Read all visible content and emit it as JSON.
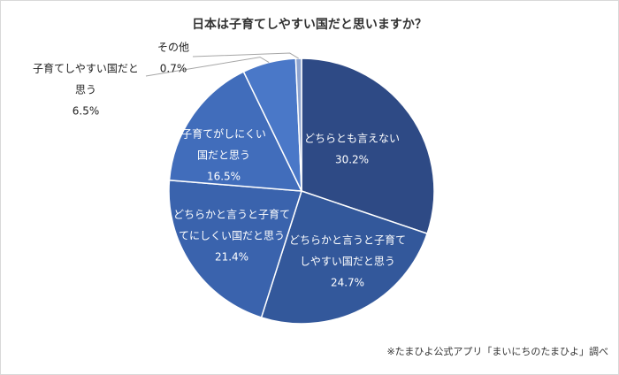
{
  "chart_data": {
    "type": "pie",
    "title": "日本は子育てしやすい国だと思いますか？",
    "categories": [
      [
        "どちらとも言えない"
      ],
      [
        "どちらかと言うと子育て",
        "しやすい国だと思う"
      ],
      [
        "どちらかと言うと子育て",
        "てにしくい国だと思う"
      ],
      [
        "子育てがしにくい",
        "国だと思う"
      ],
      [
        "子育てしやすい国だと",
        "思う"
      ],
      [
        "その他"
      ]
    ],
    "values": [
      30.2,
      24.7,
      21.4,
      16.5,
      6.5,
      0.7
    ],
    "value_labels": [
      "30.2%",
      "24.7%",
      "21.4%",
      "16.5%",
      "6.5%",
      "0.7%"
    ],
    "colors": [
      "#2e4a85",
      "#33589b",
      "#3a63ad",
      "#416dbb",
      "#4a78c8",
      "#8ea4cf"
    ],
    "note": "※たまひよ公式アプリ「まいにちのたまひよ」調べ"
  }
}
